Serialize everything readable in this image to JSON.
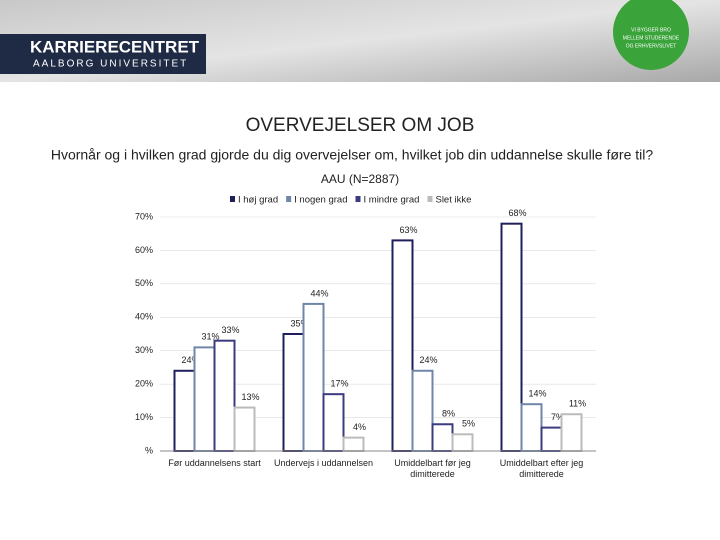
{
  "header": {
    "logo_main": "KARRIERECENTRET",
    "logo_sub": "AALBORG UNIVERSITET",
    "badge": [
      "VI BYGGER BRO",
      "MELLEM STUDERENDE",
      "OG ERHVERVSLIVET"
    ]
  },
  "slide": {
    "title": "OVERVEJELSER OM JOB",
    "question": "Hvornår og i hvilken grad gjorde du dig overvejelser om, hvilket job din uddannelse skulle føre til?"
  },
  "chart_data": {
    "type": "bar",
    "title": "AAU (N=2887)",
    "categories": [
      "Før uddannelsens start",
      "Undervejs i uddannelsen",
      "Umiddelbart før jeg dimitterede",
      "Umiddelbart efter jeg dimitterede"
    ],
    "series": [
      {
        "name": "I høj grad",
        "color": "#1f1f5c",
        "values": [
          24,
          35,
          63,
          68
        ],
        "value_labels": [
          "24%",
          "35%",
          "63%",
          "68%"
        ]
      },
      {
        "name": "I nogen grad",
        "color": "#6f86a8",
        "values": [
          31,
          44,
          24,
          14
        ],
        "value_labels": [
          "31%",
          "44%",
          "24%",
          "14%"
        ]
      },
      {
        "name": "I mindre grad",
        "color": "#3b3b80",
        "values": [
          33,
          17,
          8,
          7
        ],
        "value_labels": [
          "33%",
          "17%",
          "8%",
          "7%"
        ]
      },
      {
        "name": "Slet ikke",
        "color": "#bbbbbb",
        "values": [
          13,
          4,
          5,
          11
        ],
        "value_labels": [
          "13%",
          "4%",
          "5%",
          "11%"
        ]
      }
    ],
    "ylim": [
      0,
      70
    ],
    "yticks": [
      {
        "value": 0,
        "label": "%"
      },
      {
        "value": 10,
        "label": "10%"
      },
      {
        "value": 20,
        "label": "20%"
      },
      {
        "value": 30,
        "label": "30%"
      },
      {
        "value": 40,
        "label": "40%"
      },
      {
        "value": 50,
        "label": "50%"
      },
      {
        "value": 60,
        "label": "60%"
      },
      {
        "value": 70,
        "label": "70%"
      }
    ],
    "grid": true,
    "legend": "top"
  }
}
